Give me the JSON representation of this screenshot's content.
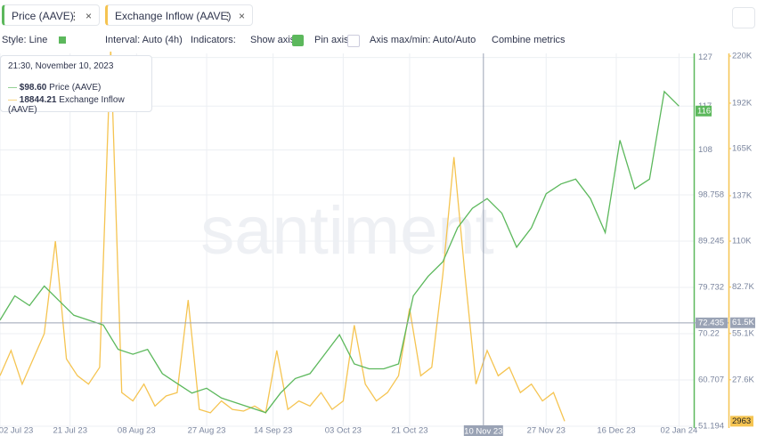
{
  "tabs": [
    "Price (AAVE)",
    "Exchange Inflow (AAVE)"
  ],
  "toolbar": [
    "Style: Line",
    "Interval: Auto (4h)",
    "Indicators:",
    "Show axis",
    "Pin axis",
    "Axis max/min: Auto/Auto",
    "Combine metrics"
  ],
  "watermark": "santiment",
  "tooltip": {
    "time": "21:30, November 10, 2023",
    "rows": [
      {
        "value": "$98.60",
        "label": "Price (AAVE)"
      },
      {
        "value": "18844.21",
        "label": "Exchange Inflow (AAVE)"
      }
    ]
  },
  "chart_data": {
    "type": "line",
    "grid": true,
    "xlim": [
      "2023-07-02",
      "2024-01-06"
    ],
    "xticks": [
      {
        "value": "2023-07-02",
        "label": "02 Jul 23"
      },
      {
        "value": "2023-07-21",
        "label": "21 Jul 23"
      },
      {
        "value": "2023-08-08",
        "label": "08 Aug 23"
      },
      {
        "value": "2023-08-27",
        "label": "27 Aug 23"
      },
      {
        "value": "2023-09-14",
        "label": "14 Sep 23"
      },
      {
        "value": "2023-10-03",
        "label": "03 Oct 23"
      },
      {
        "value": "2023-10-21",
        "label": "21 Oct 23"
      },
      {
        "value": "2023-11-27",
        "label": "27 Nov 23"
      },
      {
        "value": "2023-12-16",
        "label": "16 Dec 23"
      },
      {
        "value": "2024-01-02",
        "label": "02 Jan 24"
      }
    ],
    "ylim": [
      51.194,
      127.3
    ],
    "yticks": [
      51.194,
      60.707,
      70.22,
      79.732,
      89.245,
      98.758,
      108,
      117,
      127
    ],
    "y2lim": [
      0,
      220000
    ],
    "y2ticks": [
      {
        "value": 27600,
        "label": "27.6K"
      },
      {
        "value": 55100,
        "label": "55.1K"
      },
      {
        "value": 82700,
        "label": "82.7K"
      },
      {
        "value": 110000,
        "label": "110K"
      },
      {
        "value": 137000,
        "label": "137K"
      },
      {
        "value": 165000,
        "label": "165K"
      },
      {
        "value": 192000,
        "label": "192K"
      },
      {
        "value": 220000,
        "label": "220K"
      }
    ],
    "crosshair": {
      "x": {
        "value": "2023-11-10",
        "label": "10 Nov 23"
      },
      "y": 72.435,
      "y2": {
        "value": 61500,
        "label": "61.5K"
      }
    },
    "series": [
      {
        "name": "Price (AAVE)",
        "color": "#5cb85c",
        "last": 116,
        "x": [
          "2023-07-02",
          "2023-07-06",
          "2023-07-10",
          "2023-07-14",
          "2023-07-18",
          "2023-07-22",
          "2023-07-26",
          "2023-07-30",
          "2023-08-03",
          "2023-08-07",
          "2023-08-11",
          "2023-08-15",
          "2023-08-19",
          "2023-08-23",
          "2023-08-27",
          "2023-08-31",
          "2023-09-04",
          "2023-09-08",
          "2023-09-12",
          "2023-09-16",
          "2023-09-20",
          "2023-09-24",
          "2023-09-28",
          "2023-10-02",
          "2023-10-06",
          "2023-10-10",
          "2023-10-14",
          "2023-10-18",
          "2023-10-22",
          "2023-10-26",
          "2023-10-30",
          "2023-11-03",
          "2023-11-07",
          "2023-11-11",
          "2023-11-15",
          "2023-11-19",
          "2023-11-23",
          "2023-11-27",
          "2023-12-01",
          "2023-12-05",
          "2023-12-09",
          "2023-12-13",
          "2023-12-17",
          "2023-12-21",
          "2023-12-25",
          "2023-12-29",
          "2024-01-02"
        ],
        "values": [
          73,
          78,
          76,
          80,
          77,
          74,
          73,
          72,
          67,
          66,
          67,
          62,
          60,
          58,
          59,
          57,
          56,
          55,
          54,
          58,
          61,
          62,
          66,
          70,
          64,
          63,
          63,
          64,
          78,
          82,
          85,
          92,
          96,
          98,
          95,
          88,
          92,
          99,
          101,
          102,
          98,
          91,
          110,
          100,
          102,
          120,
          117
        ]
      },
      {
        "name": "Exchange Inflow (AAVE)",
        "color": "#f5c451",
        "axis": "y2",
        "last": 2963,
        "x": [
          "2023-07-02",
          "2023-07-05",
          "2023-07-08",
          "2023-07-11",
          "2023-07-14",
          "2023-07-17",
          "2023-07-20",
          "2023-07-23",
          "2023-07-26",
          "2023-07-29",
          "2023-08-01",
          "2023-08-04",
          "2023-08-07",
          "2023-08-10",
          "2023-08-13",
          "2023-08-16",
          "2023-08-19",
          "2023-08-22",
          "2023-08-25",
          "2023-08-28",
          "2023-08-31",
          "2023-09-03",
          "2023-09-06",
          "2023-09-09",
          "2023-09-12",
          "2023-09-15",
          "2023-09-18",
          "2023-09-21",
          "2023-09-24",
          "2023-09-27",
          "2023-09-30",
          "2023-10-03",
          "2023-10-06",
          "2023-10-09",
          "2023-10-12",
          "2023-10-15",
          "2023-10-18",
          "2023-10-21",
          "2023-10-24",
          "2023-10-27",
          "2023-10-30",
          "2023-11-02",
          "2023-11-05",
          "2023-11-08",
          "2023-11-11",
          "2023-11-14",
          "2023-11-17",
          "2023-11-20",
          "2023-11-23",
          "2023-11-26",
          "2023-11-29",
          "2023-12-02"
        ],
        "values": [
          30000,
          45000,
          25000,
          40000,
          55000,
          110000,
          40000,
          30000,
          25000,
          35000,
          225000,
          20000,
          15000,
          25000,
          12000,
          18000,
          20000,
          75000,
          10000,
          8000,
          15000,
          10000,
          9000,
          12000,
          8000,
          45000,
          10000,
          15000,
          12000,
          20000,
          10000,
          15000,
          60000,
          25000,
          15000,
          20000,
          30000,
          70000,
          30000,
          35000,
          90000,
          160000,
          90000,
          25000,
          45000,
          30000,
          35000,
          20000,
          25000,
          15000,
          20000,
          2963
        ]
      }
    ]
  }
}
